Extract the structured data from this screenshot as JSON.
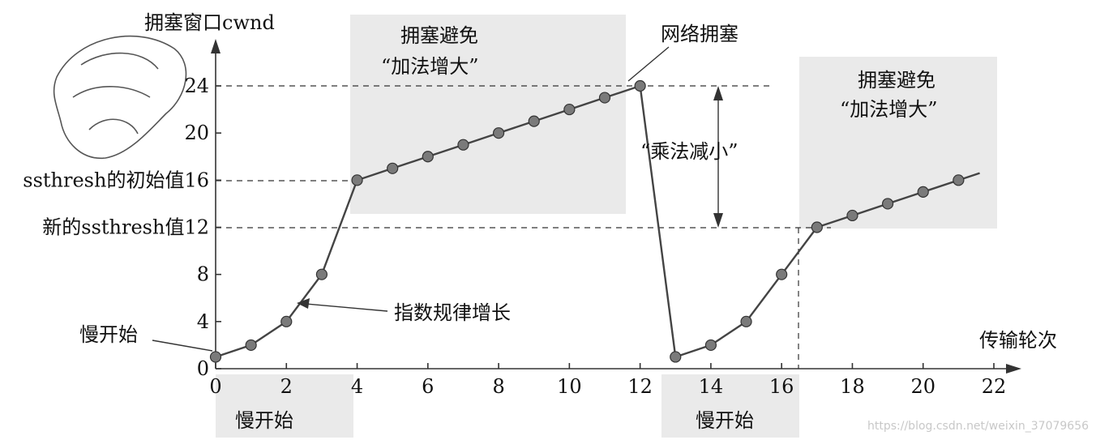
{
  "chart_data": {
    "type": "line",
    "y_axis_title": "拥塞窗口cwnd",
    "x_axis_title": "传输轮次",
    "xlim": [
      0,
      22
    ],
    "ylim": [
      0,
      24
    ],
    "x_ticks": [
      0,
      2,
      4,
      6,
      8,
      10,
      12,
      14,
      16,
      18,
      20,
      22
    ],
    "y_ticks": [
      0,
      4,
      8,
      12,
      16,
      20,
      24
    ],
    "y_tick_labels": {
      "0": "0",
      "4": "4",
      "8": "8",
      "12": "新的ssthresh值12",
      "16": "ssthresh的初始值16",
      "20": "20",
      "24": "24"
    },
    "series": [
      {
        "x": [
          0,
          1,
          2,
          3,
          4,
          5,
          6,
          7,
          8,
          9,
          10,
          11,
          12,
          13,
          14,
          15,
          16,
          17,
          18,
          19,
          20,
          21
        ],
        "y": [
          1,
          2,
          4,
          8,
          16,
          17,
          18,
          19,
          20,
          21,
          22,
          23,
          24,
          1,
          2,
          4,
          8,
          12,
          13,
          14,
          15,
          16
        ]
      }
    ],
    "annotations": {
      "slow_start_top": "慢开始",
      "slow_start_bottom_1": "慢开始",
      "slow_start_bottom_2": "慢开始",
      "exponential": "指数规律增长",
      "network_congestion": "网络拥塞",
      "mult_decrease": "“乘法减小”",
      "ca1_line1": "拥塞避免",
      "ca1_line2": "“加法增大”",
      "ca2_line1": "拥塞避免",
      "ca2_line2": "“加法增大”"
    },
    "grid": false,
    "legend": "none"
  },
  "watermark": "https://blog.csdn.net/weixin_37079656"
}
